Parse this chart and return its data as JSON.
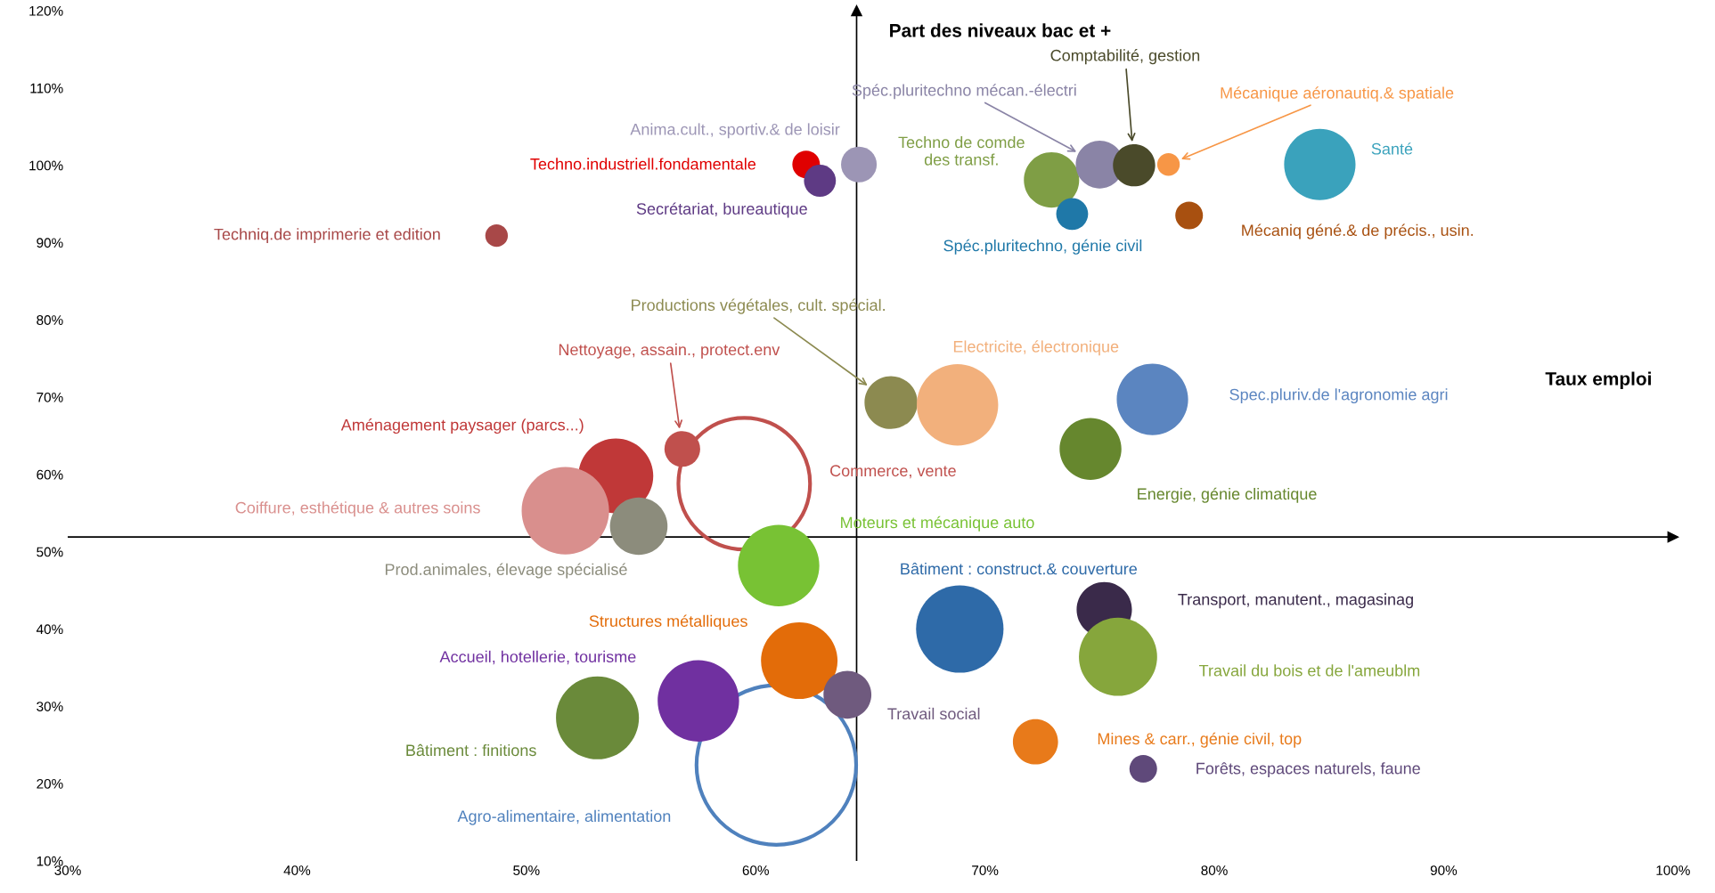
{
  "chart_data": {
    "type": "bubble",
    "xlabel": "Taux emploi",
    "ylabel": "Part des niveaux bac et +",
    "xlim": [
      30,
      100
    ],
    "xticks": [
      {
        "value": 30,
        "label": "30%"
      },
      {
        "value": 40,
        "label": "40%"
      },
      {
        "value": 50,
        "label": "50%"
      },
      {
        "value": 60,
        "label": "60%"
      },
      {
        "value": 70,
        "label": "70%"
      },
      {
        "value": 80,
        "label": "80%"
      },
      {
        "value": 90,
        "label": "90%"
      },
      {
        "value": 100,
        "label": "100%"
      }
    ],
    "ylim": [
      10,
      120
    ],
    "yticks": [
      {
        "value": 10,
        "label": "10%"
      },
      {
        "value": 20,
        "label": "20%"
      },
      {
        "value": 30,
        "label": "30%"
      },
      {
        "value": 40,
        "label": "40%"
      },
      {
        "value": 50,
        "label": "50%"
      },
      {
        "value": 60,
        "label": "60%"
      },
      {
        "value": 70,
        "label": "70%"
      },
      {
        "value": 80,
        "label": "80%"
      },
      {
        "value": 90,
        "label": "90%"
      },
      {
        "value": 100,
        "label": "100%"
      },
      {
        "value": 110,
        "label": "110%"
      },
      {
        "value": 120,
        "label": "120%"
      }
    ],
    "ref_lines": [
      {
        "axis": "x",
        "value": 64.4,
        "color": "#000000"
      },
      {
        "axis": "y",
        "value": 51.9,
        "color": "#000000"
      }
    ],
    "grid": false,
    "legend": false,
    "series": [
      {
        "name": "Santé",
        "color": "#3aa2bc",
        "x": [
          84.6
        ],
        "values": [
          100.1
        ],
        "sizes": [
          0.2
        ]
      },
      {
        "name": "Techno.industriell.fondamentale",
        "color": "#e00000",
        "x": [
          62.2
        ],
        "values": [
          100.1
        ],
        "sizes": [
          0.03
        ]
      },
      {
        "name": "Secrétariat, bureautique",
        "color": "#5e3a84",
        "x": [
          62.8
        ],
        "values": [
          98.0
        ],
        "sizes": [
          0.04
        ]
      },
      {
        "name": "Anima.cult., sportiv.& de loisir",
        "color": "#9c95b5",
        "x": [
          64.5
        ],
        "values": [
          100.1
        ],
        "sizes": [
          0.05
        ]
      },
      {
        "name": "Techniq.de imprimerie et edition",
        "color": "#a84848",
        "x": [
          48.7
        ],
        "values": [
          90.9
        ],
        "sizes": [
          0.02
        ]
      },
      {
        "name": "Techno de comde\ndes transf.",
        "color": "#7f9e45",
        "x": [
          72.9
        ],
        "values": [
          98.1
        ],
        "sizes": [
          0.12
        ]
      },
      {
        "name": "Spéc.pluritechno, génie civil",
        "color": "#1f78a8",
        "x": [
          73.8
        ],
        "values": [
          93.7
        ],
        "sizes": [
          0.04
        ]
      },
      {
        "name": "Spéc.pluritechno mécan.-électri",
        "color": "#8a84a6",
        "x": [
          75.0
        ],
        "values": [
          100.1
        ],
        "sizes": [
          0.09
        ]
      },
      {
        "name": "Comptabilité, gestion",
        "color": "#4a4a2a",
        "x": [
          76.5
        ],
        "values": [
          100.0
        ],
        "sizes": [
          0.07
        ]
      },
      {
        "name": "Mécanique aéronautiq.& spatiale",
        "color": "#f79646",
        "x": [
          78.0
        ],
        "values": [
          100.1
        ],
        "sizes": [
          0.02
        ]
      },
      {
        "name": "Mécaniq géné.& de précis., usin.",
        "color": "#a85010",
        "x": [
          78.9
        ],
        "values": [
          93.5
        ],
        "sizes": [
          0.03
        ]
      },
      {
        "name": "Productions végétales, cult. spécial.",
        "color": "#8c8a50",
        "x": [
          65.9
        ],
        "values": [
          69.3
        ],
        "sizes": [
          0.11
        ]
      },
      {
        "name": "Electricite, électronique",
        "color": "#f2b07c",
        "x": [
          68.8
        ],
        "values": [
          69.0
        ],
        "sizes": [
          0.26
        ]
      },
      {
        "name": "Spec.pluriv.de l'agronomie agri",
        "color": "#5b85c0",
        "x": [
          77.3
        ],
        "values": [
          69.7
        ],
        "sizes": [
          0.2
        ]
      },
      {
        "name": "Energie, génie climatique",
        "color": "#66872e",
        "x": [
          74.6
        ],
        "values": [
          63.3
        ],
        "sizes": [
          0.15
        ]
      },
      {
        "name": "Nettoyage, assain., protect.env",
        "color": "#c0504d",
        "x": [
          56.8
        ],
        "values": [
          63.3
        ],
        "sizes": [
          0.05
        ]
      },
      {
        "name": "Aménagement paysager (parcs...)",
        "color": "#c03838",
        "x": [
          53.9
        ],
        "values": [
          59.8
        ],
        "sizes": [
          0.22
        ]
      },
      {
        "name": "Coiffure, esthétique & autres soins",
        "color": "#d98f8d",
        "x": [
          51.7
        ],
        "values": [
          55.3
        ],
        "sizes": [
          0.3
        ]
      },
      {
        "name": "Prod.animales, élevage spécialisé",
        "color": "#8c8c7c",
        "x": [
          54.9
        ],
        "values": [
          53.3
        ],
        "sizes": [
          0.13
        ]
      },
      {
        "name": "Moteurs et mécanique auto",
        "color": "#78c234",
        "x": [
          61.0
        ],
        "values": [
          48.2
        ],
        "sizes": [
          0.26
        ]
      },
      {
        "name": "Bâtiment : construct.& couverture",
        "color": "#2e6aa8",
        "x": [
          68.9
        ],
        "values": [
          40.0
        ],
        "sizes": [
          0.3
        ]
      },
      {
        "name": "Transport, manutent., magasinag",
        "color": "#3a2a4a",
        "x": [
          75.2
        ],
        "values": [
          42.5
        ],
        "sizes": [
          0.12
        ]
      },
      {
        "name": "Travail du bois et de l'ameublm",
        "color": "#86a63c",
        "x": [
          75.8
        ],
        "values": [
          36.4
        ],
        "sizes": [
          0.24
        ]
      },
      {
        "name": "Structures métalliques",
        "color": "#e36c09",
        "x": [
          61.9
        ],
        "values": [
          35.9
        ],
        "sizes": [
          0.23
        ]
      },
      {
        "name": "Travail social",
        "color": "#6f5a7e",
        "x": [
          64.0
        ],
        "values": [
          31.5
        ],
        "sizes": [
          0.09
        ]
      },
      {
        "name": "Accueil, hotellerie, tourisme",
        "color": "#7030a0",
        "x": [
          57.5
        ],
        "values": [
          30.7
        ],
        "sizes": [
          0.26
        ]
      },
      {
        "name": "Bâtiment : finitions",
        "color": "#6a8a3a",
        "x": [
          53.1
        ],
        "values": [
          28.5
        ],
        "sizes": [
          0.27
        ]
      },
      {
        "name": "Mines & carr., génie civil, top",
        "color": "#e87a1a",
        "x": [
          72.2
        ],
        "values": [
          25.4
        ],
        "sizes": [
          0.08
        ]
      },
      {
        "name": "Forêts, espaces naturels, faune",
        "color": "#5f497a",
        "x": [
          76.9
        ],
        "values": [
          21.9
        ],
        "sizes": [
          0.03
        ]
      },
      {
        "name": "Commerce, vente",
        "color": "#c0504d",
        "x": [
          59.5
        ],
        "values": [
          58.8
        ],
        "sizes": [
          0.68
        ],
        "line_style": "solid"
      },
      {
        "name": "Agro-alimentaire, alimentation",
        "color": "#4f81bd",
        "x": [
          60.9
        ],
        "values": [
          22.4
        ],
        "sizes": [
          1
        ],
        "line_style": "solid"
      }
    ]
  }
}
